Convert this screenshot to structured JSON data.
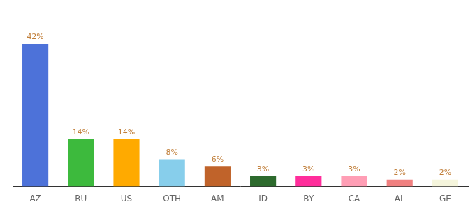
{
  "chart_data": {
    "type": "bar",
    "categories": [
      "AZ",
      "RU",
      "US",
      "OTH",
      "AM",
      "ID",
      "BY",
      "CA",
      "AL",
      "GE"
    ],
    "values": [
      42,
      14,
      14,
      8,
      6,
      3,
      3,
      3,
      2,
      2
    ],
    "value_labels": [
      "42%",
      "14%",
      "14%",
      "8%",
      "6%",
      "3%",
      "3%",
      "3%",
      "2%",
      "2%"
    ],
    "colors": [
      "#4d72d9",
      "#3dba3d",
      "#ffaa00",
      "#87ceeb",
      "#c0632a",
      "#2d6a2d",
      "#ff2d9b",
      "#ff9eb5",
      "#f08080",
      "#f5f5dc"
    ],
    "ylim": [
      0,
      50
    ],
    "grid": false,
    "data_labels": true,
    "tick_labels": "x"
  }
}
